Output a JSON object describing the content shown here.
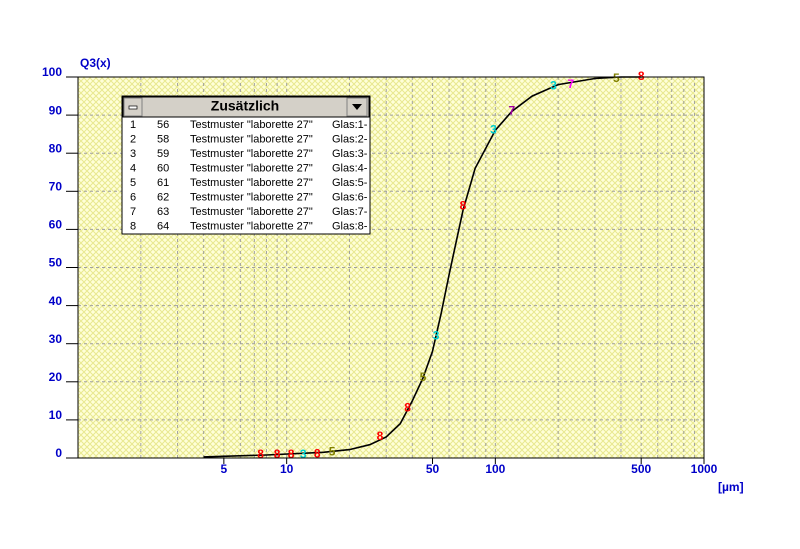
{
  "chart_data": {
    "type": "line",
    "y_label": "Q3(x)",
    "x_label": "[µm]",
    "xlim": [
      1,
      1000
    ],
    "ylim": [
      0,
      100
    ],
    "log_x": true,
    "xticks": [
      5,
      10,
      50,
      100,
      500,
      1000
    ],
    "yticks": [
      0,
      10,
      20,
      30,
      40,
      50,
      60,
      70,
      80,
      90,
      100
    ],
    "xgrid": [
      2,
      3,
      4,
      5,
      6,
      7,
      8,
      9,
      10,
      20,
      30,
      40,
      50,
      60,
      70,
      80,
      90,
      100,
      200,
      300,
      400,
      500,
      600,
      700,
      800,
      900
    ],
    "grid": true,
    "series": [
      {
        "color": "#000000",
        "x": [
          4,
          8,
          15,
          20,
          25,
          30,
          35,
          40,
          45,
          50,
          55,
          60,
          70,
          80,
          100,
          120,
          150,
          200,
          300,
          400,
          500
        ],
        "values": [
          0.3,
          0.8,
          1.5,
          2.2,
          3.5,
          5.5,
          9,
          15,
          21,
          28,
          38,
          48,
          65,
          76,
          86,
          91,
          95,
          98,
          99.6,
          100,
          100
        ]
      }
    ],
    "markers": [
      {
        "label": "8",
        "color": "#ff0000",
        "x": 7.5,
        "y": 0.8
      },
      {
        "label": "8",
        "color": "#ff0000",
        "x": 9,
        "y": 0.8
      },
      {
        "label": "8",
        "color": "#ff0000",
        "x": 10.5,
        "y": 0.8
      },
      {
        "label": "3",
        "color": "#00d0d0",
        "x": 12,
        "y": 0.8
      },
      {
        "label": "8",
        "color": "#ff0000",
        "x": 14,
        "y": 1
      },
      {
        "label": "5",
        "color": "#808000",
        "x": 16.5,
        "y": 1.5
      },
      {
        "label": "8",
        "color": "#ff0000",
        "x": 28,
        "y": 5.5
      },
      {
        "label": "8",
        "color": "#ff0000",
        "x": 38,
        "y": 13
      },
      {
        "label": "5",
        "color": "#808000",
        "x": 45,
        "y": 21
      },
      {
        "label": "3",
        "color": "#00d0d0",
        "x": 52,
        "y": 32
      },
      {
        "label": "8",
        "color": "#ff0000",
        "x": 70,
        "y": 66
      },
      {
        "label": "3",
        "color": "#00d0d0",
        "x": 98,
        "y": 86
      },
      {
        "label": "7",
        "color": "#a000a0",
        "x": 120,
        "y": 91
      },
      {
        "label": "3",
        "color": "#00d0d0",
        "x": 190,
        "y": 97.5
      },
      {
        "label": "7",
        "color": "#ff00ff",
        "x": 230,
        "y": 98
      },
      {
        "label": "5",
        "color": "#808000",
        "x": 380,
        "y": 99.5
      },
      {
        "label": "8",
        "color": "#ff0000",
        "x": 500,
        "y": 100
      }
    ]
  },
  "legend_box": {
    "title": "Zusätzlich",
    "rows": [
      [
        "1",
        "56",
        "Testmuster \"laborette 27\"",
        "Glas:1-"
      ],
      [
        "2",
        "58",
        "Testmuster \"laborette 27\"",
        "Glas:2-"
      ],
      [
        "3",
        "59",
        "Testmuster \"laborette 27\"",
        "Glas:3-"
      ],
      [
        "4",
        "60",
        "Testmuster \"laborette 27\"",
        "Glas:4-"
      ],
      [
        "5",
        "61",
        "Testmuster \"laborette 27\"",
        "Glas:5-"
      ],
      [
        "6",
        "62",
        "Testmuster \"laborette 27\"",
        "Glas:6-"
      ],
      [
        "7",
        "63",
        "Testmuster \"laborette 27\"",
        "Glas:7-"
      ],
      [
        "8",
        "64",
        "Testmuster \"laborette 27\"",
        "Glas:8-"
      ]
    ]
  }
}
